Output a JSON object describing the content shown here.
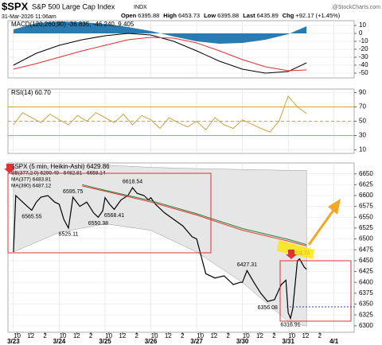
{
  "header": {
    "symbol": "$SPX",
    "name": "S&P 500 Large Cap Index",
    "exchange": "INDX",
    "datetime": "31-Mar-2026 11:06am",
    "quote": [
      {
        "label": "Open",
        "value": 6395.88
      },
      {
        "label": "High",
        "value": 6453.73
      },
      {
        "label": "Low",
        "value": 6395.88
      },
      {
        "label": "Last",
        "value": 6435.89
      },
      {
        "label": "Chg",
        "value": "+92.17 (+1.45%)"
      }
    ],
    "source": "@StockCharts.com"
  },
  "chart_data": [
    {
      "type": "line",
      "legend": "MACD(120,260,90) -36.835, -46.240, 9.405",
      "xlim": [
        -0.12,
        7.44
      ],
      "ylim": [
        -56,
        16
      ],
      "yticks": [
        10,
        0,
        -10,
        -20,
        -30,
        -40,
        -50
      ],
      "x": [
        0,
        0.5,
        1,
        1.5,
        2,
        2.5,
        3,
        3.5,
        4,
        4.5,
        5,
        5.5,
        6,
        6.4
      ],
      "series": [
        {
          "style": "area",
          "color": "#2a7bb0",
          "values": [
            5,
            13,
            15,
            14,
            12,
            8,
            3,
            -4,
            -10,
            -13,
            -12,
            -8,
            -1,
            9
          ]
        },
        {
          "color": "#000000",
          "values": [
            -40,
            -25,
            -15,
            -8,
            -3,
            0,
            -2,
            -10,
            -22,
            -35,
            -45,
            -50,
            -48,
            -37
          ]
        },
        {
          "color": "#e03030",
          "values": [
            -45,
            -38,
            -30,
            -22,
            -15,
            -8,
            -5,
            -6,
            -12,
            -22,
            -33,
            -42,
            -47,
            -46
          ]
        }
      ]
    },
    {
      "type": "line",
      "legend": "RSI(14) 60.70",
      "xlim": [
        -0.12,
        7.44
      ],
      "ylim": [
        5,
        95
      ],
      "yticks": [
        90,
        70,
        50,
        30,
        10
      ],
      "levels": [
        70,
        50,
        30
      ],
      "level_styles": [
        "solid",
        "dashed",
        "solid"
      ],
      "level_color": "#d4a62a",
      "x": [
        0,
        0.2,
        0.4,
        0.6,
        0.8,
        1,
        1.2,
        1.4,
        1.6,
        1.8,
        2,
        2.2,
        2.4,
        2.6,
        2.8,
        3,
        3.2,
        3.4,
        3.6,
        3.8,
        4,
        4.2,
        4.4,
        4.6,
        4.8,
        5,
        5.2,
        5.4,
        5.6,
        5.8,
        6,
        6.2,
        6.4
      ],
      "series": [
        {
          "color": "#c9a640",
          "values": [
            45,
            62,
            55,
            48,
            60,
            52,
            45,
            58,
            50,
            62,
            55,
            48,
            60,
            45,
            58,
            52,
            40,
            55,
            48,
            42,
            50,
            38,
            55,
            45,
            40,
            52,
            46,
            40,
            35,
            50,
            85,
            70,
            60.7
          ]
        }
      ]
    },
    {
      "type": "line",
      "xlim": [
        -0.12,
        7.44
      ],
      "ylim": [
        6285,
        6675
      ],
      "yticks": [
        6650,
        6625,
        6600,
        6575,
        6550,
        6525,
        6500,
        6475,
        6450,
        6425,
        6400,
        6375,
        6350,
        6325,
        6300
      ],
      "xticks": [
        {
          "value": 0.08,
          "label": "10"
        },
        {
          "value": 0.38,
          "label": "12"
        },
        {
          "value": 0.69,
          "label": "2"
        },
        {
          "value": 1.08,
          "label": "10"
        },
        {
          "value": 1.38,
          "label": "12"
        },
        {
          "value": 1.69,
          "label": "2"
        },
        {
          "value": 2.08,
          "label": "10"
        },
        {
          "value": 2.38,
          "label": "12"
        },
        {
          "value": 2.69,
          "label": "2"
        },
        {
          "value": 3.08,
          "label": "10"
        },
        {
          "value": 3.38,
          "label": "12"
        },
        {
          "value": 3.69,
          "label": "2"
        },
        {
          "value": 4.08,
          "label": "10"
        },
        {
          "value": 4.38,
          "label": "12"
        },
        {
          "value": 4.69,
          "label": "2"
        },
        {
          "value": 5.08,
          "label": "10"
        },
        {
          "value": 5.38,
          "label": "12"
        },
        {
          "value": 5.69,
          "label": "2"
        },
        {
          "value": 6.08,
          "label": "10"
        },
        {
          "value": 6.38,
          "label": "12"
        },
        {
          "value": 6.69,
          "label": "2"
        }
      ],
      "xdates": [
        {
          "value": 0,
          "label": "3/23"
        },
        {
          "value": 1,
          "label": "3/24"
        },
        {
          "value": 2,
          "label": "3/25"
        },
        {
          "value": 3,
          "label": "3/26"
        },
        {
          "value": 4,
          "label": "3/27"
        },
        {
          "value": 5,
          "label": "3/30"
        },
        {
          "value": 6,
          "label": "3/31"
        },
        {
          "value": 7,
          "label": "4/1"
        }
      ],
      "series": [
        {
          "name": "$SPX (5 min, Heikin-Ashi) 6429.86",
          "color": "#000000",
          "x": [
            0,
            0.05,
            0.15,
            0.3,
            0.4,
            0.5,
            0.6,
            0.75,
            0.9,
            1.0,
            1.1,
            1.2,
            1.3,
            1.45,
            1.6,
            1.75,
            1.85,
            1.95,
            2.0,
            2.1,
            2.2,
            2.35,
            2.5,
            2.6,
            2.7,
            2.85,
            2.95,
            3.0,
            3.1,
            3.3,
            3.5,
            3.7,
            3.9,
            4.0,
            4.1,
            4.2,
            4.4,
            4.6,
            4.8,
            4.95,
            5.0,
            5.1,
            5.25,
            5.4,
            5.55,
            5.7,
            5.85,
            5.95,
            6.0,
            6.05,
            6.1,
            6.2,
            6.25,
            6.35,
            6.4
          ],
          "values": [
            6470,
            6600,
            6590,
            6575,
            6566,
            6585,
            6596,
            6600,
            6585,
            6580,
            6545,
            6525,
            6596,
            6575,
            6585,
            6560,
            6550,
            6565,
            6595,
            6580,
            6568,
            6590,
            6600,
            6618,
            6605,
            6600,
            6590,
            6595,
            6580,
            6560,
            6545,
            6530,
            6505,
            6500,
            6460,
            6420,
            6410,
            6415,
            6395,
            6400,
            6400,
            6427,
            6400,
            6375,
            6356,
            6360,
            6395,
            6405,
            6330,
            6317,
            6340,
            6450,
            6454,
            6435,
            6430
          ]
        },
        {
          "name": "BB(377,2.0) 6299.49 - 6482.81 - 6658.14",
          "style": "band",
          "color": "#9a9a9a",
          "x": [
            0,
            1,
            2,
            3,
            4,
            5,
            6,
            6.4
          ],
          "upper": [
            6668,
            6668,
            6670,
            6665,
            6662,
            6660,
            6658,
            6658
          ],
          "lower": [
            6470,
            6515,
            6535,
            6520,
            6470,
            6400,
            6310,
            6299
          ]
        },
        {
          "name": "MA(377) 6483.81",
          "color": "#e03030",
          "x": [
            1.5,
            2,
            3,
            4,
            5,
            6,
            6.4
          ],
          "values": [
            6622,
            6610,
            6585,
            6555,
            6520,
            6495,
            6484
          ]
        },
        {
          "name": "MA(390) 6487.12",
          "color": "#2e7d32",
          "x": [
            1.5,
            2,
            3,
            4,
            5,
            6,
            6.4
          ],
          "values": [
            6625,
            6612,
            6588,
            6558,
            6524,
            6499,
            6487
          ]
        }
      ],
      "price_labels": [
        {
          "x": 0.4,
          "value": 6565.55
        },
        {
          "x": 1.3,
          "value": 6595.75
        },
        {
          "x": 1.2,
          "value": 6525.11
        },
        {
          "x": 1.85,
          "value": 6550.38
        },
        {
          "x": 2.2,
          "value": 6568.41
        },
        {
          "x": 2.6,
          "value": 6618.54
        },
        {
          "x": 5.1,
          "value": 6427.31
        },
        {
          "x": 5.55,
          "value": 6356.08
        },
        {
          "x": 6.05,
          "value": 6316.91
        },
        {
          "x": 6.25,
          "value": 6453.73
        }
      ]
    }
  ]
}
